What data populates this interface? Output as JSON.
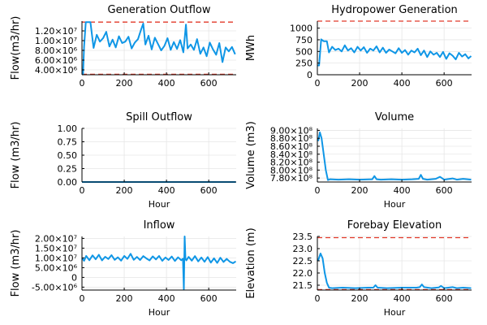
{
  "chart_data": [
    {
      "type": "line",
      "title": "Generation Outflow",
      "xlabel": "",
      "ylabel": "Flow(m3/hr)",
      "xlim": [
        0,
        730
      ],
      "ylim": [
        3000000,
        14000000
      ],
      "xticks": [
        0,
        200,
        400,
        600
      ],
      "xtick_labels": [
        "0",
        "200",
        "400",
        "600"
      ],
      "yticks": [
        4000000,
        6000000,
        8000000,
        10000000,
        12000000
      ],
      "ytick_labels": [
        "4.00×10⁶",
        "6.00×10⁶",
        "8.00×10⁶",
        "1.00×10⁷",
        "1.20×10⁷"
      ],
      "ref_lines": [
        13800000,
        3100000
      ],
      "series": [
        {
          "x": [
            0,
            5,
            10,
            18,
            25,
            40,
            55,
            70,
            85,
            100,
            115,
            130,
            145,
            160,
            175,
            190,
            205,
            220,
            235,
            250,
            265,
            280,
            290,
            300,
            315,
            330,
            345,
            360,
            375,
            390,
            405,
            420,
            435,
            450,
            465,
            480,
            492,
            500,
            515,
            530,
            545,
            560,
            575,
            590,
            605,
            620,
            635,
            650,
            665,
            680,
            695,
            710,
            725
          ],
          "y": [
            3100000,
            3100000,
            8800000,
            13800000,
            13800000,
            13800000,
            8500000,
            11200000,
            9800000,
            10500000,
            11800000,
            8800000,
            10200000,
            8600000,
            10900000,
            9500000,
            9800000,
            10800000,
            8400000,
            9600000,
            10300000,
            12300000,
            13500000,
            9200000,
            11000000,
            8200000,
            10600000,
            9300000,
            8000000,
            8900000,
            10500000,
            8100000,
            9700000,
            8300000,
            10100000,
            7600000,
            13300000,
            8400000,
            9200000,
            8100000,
            10300000,
            7300000,
            8600000,
            6800000,
            9600000,
            8200000,
            7100000,
            9500000,
            5600000,
            8600000,
            7800000,
            8700000,
            7200000
          ]
        }
      ]
    },
    {
      "type": "line",
      "title": "Hydropower Generation",
      "xlabel": "",
      "ylabel": "MWh",
      "xlim": [
        0,
        730
      ],
      "ylim": [
        0,
        1150
      ],
      "xticks": [
        0,
        200,
        400,
        600
      ],
      "xtick_labels": [
        "0",
        "200",
        "400",
        "600"
      ],
      "yticks": [
        0,
        250,
        500,
        750,
        1000
      ],
      "ytick_labels": [
        "0",
        "250",
        "500",
        "750",
        "1000"
      ],
      "ref_lines": [
        1150
      ],
      "series": [
        {
          "x": [
            0,
            8,
            18,
            30,
            45,
            55,
            70,
            85,
            100,
            115,
            130,
            145,
            160,
            175,
            190,
            205,
            220,
            235,
            250,
            265,
            280,
            295,
            310,
            325,
            340,
            355,
            370,
            385,
            400,
            415,
            430,
            445,
            460,
            475,
            490,
            505,
            520,
            535,
            550,
            565,
            580,
            595,
            610,
            625,
            640,
            655,
            670,
            685,
            700,
            715,
            728
          ],
          "y": [
            200,
            200,
            760,
            720,
            720,
            480,
            600,
            530,
            560,
            500,
            630,
            520,
            570,
            480,
            600,
            520,
            590,
            470,
            560,
            520,
            610,
            480,
            580,
            470,
            540,
            500,
            460,
            570,
            470,
            530,
            430,
            520,
            480,
            560,
            420,
            520,
            380,
            500,
            430,
            470,
            380,
            490,
            340,
            460,
            410,
            330,
            470,
            390,
            440,
            350,
            400
          ]
        }
      ]
    },
    {
      "type": "line",
      "title": "Spill Outflow",
      "xlabel": "Hour",
      "ylabel": "Flow (m3/hr)",
      "xlim": [
        0,
        730
      ],
      "ylim": [
        0,
        1.0
      ],
      "xticks": [
        0,
        200,
        400,
        600
      ],
      "xtick_labels": [
        "0",
        "200",
        "400",
        "600"
      ],
      "yticks": [
        0,
        0.25,
        0.5,
        0.75,
        1.0
      ],
      "ytick_labels": [
        "0.00",
        "0.25",
        "0.50",
        "0.75",
        "1.00"
      ],
      "ref_lines": [],
      "series": [
        {
          "x": [
            0,
            728
          ],
          "y": [
            0,
            0
          ]
        }
      ]
    },
    {
      "type": "line",
      "title": "Volume",
      "xlabel": "Hour",
      "ylabel": "Volume (m3)",
      "xlim": [
        0,
        730
      ],
      "ylim": [
        770000000,
        905000000
      ],
      "xticks": [
        0,
        200,
        400,
        600
      ],
      "xtick_labels": [
        "0",
        "200",
        "400",
        "600"
      ],
      "yticks": [
        780000000,
        800000000,
        820000000,
        840000000,
        860000000,
        880000000,
        900000000
      ],
      "ytick_labels": [
        "7.80×10⁸",
        "8.00×10⁸",
        "8.20×10⁸",
        "8.40×10⁸",
        "8.60×10⁸",
        "8.80×10⁸",
        "9.00×10⁸"
      ],
      "ref_lines": [],
      "series": [
        {
          "x": [
            0,
            5,
            12,
            20,
            30,
            40,
            50,
            60,
            100,
            150,
            200,
            260,
            270,
            280,
            300,
            350,
            400,
            450,
            480,
            490,
            500,
            520,
            560,
            580,
            600,
            640,
            660,
            690,
            728
          ],
          "y": [
            875000000,
            875000000,
            895000000,
            880000000,
            840000000,
            800000000,
            775000000,
            777000000,
            776000000,
            777000000,
            776000000,
            777000000,
            785000000,
            777000000,
            776000000,
            777000000,
            776000000,
            777000000,
            778000000,
            788000000,
            778000000,
            776000000,
            778000000,
            783000000,
            776000000,
            779000000,
            776000000,
            778000000,
            776000000
          ]
        }
      ]
    },
    {
      "type": "line",
      "title": "Inflow",
      "xlabel": "Hour",
      "ylabel": "Flow (m3/hr)",
      "xlim": [
        0,
        730
      ],
      "ylim": [
        -6500000,
        21000000
      ],
      "xticks": [
        0,
        200,
        400,
        600
      ],
      "xtick_labels": [
        "0",
        "200",
        "400",
        "600"
      ],
      "yticks": [
        -5000000,
        0,
        5000000,
        10000000,
        15000000,
        20000000
      ],
      "ytick_labels": [
        "-5.00×10⁶",
        "0",
        "5.00×10⁶",
        "1.00×10⁷",
        "1.50×10⁷",
        "2.00×10⁷"
      ],
      "ref_lines": [],
      "series": [
        {
          "x": [
            0,
            10,
            20,
            35,
            50,
            65,
            80,
            95,
            110,
            125,
            140,
            155,
            170,
            185,
            200,
            215,
            230,
            245,
            260,
            275,
            290,
            305,
            320,
            335,
            350,
            365,
            380,
            395,
            410,
            425,
            440,
            455,
            470,
            478,
            482,
            486,
            490,
            494,
            505,
            520,
            535,
            550,
            565,
            580,
            595,
            610,
            625,
            640,
            655,
            670,
            685,
            700,
            715,
            728
          ],
          "y": [
            10000000,
            8500000,
            11000000,
            8800000,
            11300000,
            9300000,
            11600000,
            8700000,
            10600000,
            9400000,
            11400000,
            9000000,
            10300000,
            8600000,
            11000000,
            9500000,
            12100000,
            9000000,
            10500000,
            8900000,
            10900000,
            9700000,
            8700000,
            10800000,
            9200000,
            11000000,
            8500000,
            10200000,
            8900000,
            10700000,
            8400000,
            10300000,
            8800000,
            9600000,
            -6000000,
            21000000,
            9500000,
            8700000,
            10500000,
            8600000,
            10900000,
            8200000,
            10200000,
            8000000,
            10400000,
            7600000,
            9800000,
            7400000,
            10100000,
            7900000,
            9500000,
            8000000,
            7300000,
            8200000
          ]
        }
      ]
    },
    {
      "type": "line",
      "title": "Forebay Elevation",
      "xlabel": "Hour",
      "ylabel": "Elevation (m)",
      "xlim": [
        0,
        730
      ],
      "ylim": [
        21.3,
        23.5
      ],
      "xticks": [
        0,
        200,
        400,
        600
      ],
      "xtick_labels": [
        "0",
        "200",
        "400",
        "600"
      ],
      "yticks": [
        21.5,
        22.0,
        22.5,
        23.0,
        23.5
      ],
      "ytick_labels": [
        "21.5",
        "22.0",
        "22.5",
        "23.0",
        "23.5"
      ],
      "ref_lines": [
        23.45,
        21.32
      ],
      "series": [
        {
          "x": [
            0,
            5,
            15,
            25,
            35,
            45,
            55,
            70,
            120,
            180,
            240,
            265,
            275,
            285,
            330,
            400,
            470,
            485,
            495,
            505,
            540,
            575,
            585,
            600,
            640,
            660,
            690,
            728
          ],
          "y": [
            22.5,
            22.55,
            22.8,
            22.6,
            22.0,
            21.6,
            21.4,
            21.38,
            21.4,
            21.38,
            21.4,
            21.4,
            21.5,
            21.4,
            21.38,
            21.4,
            21.4,
            21.42,
            21.53,
            21.42,
            21.38,
            21.41,
            21.47,
            21.38,
            21.42,
            21.38,
            21.4,
            21.38
          ]
        }
      ]
    }
  ]
}
